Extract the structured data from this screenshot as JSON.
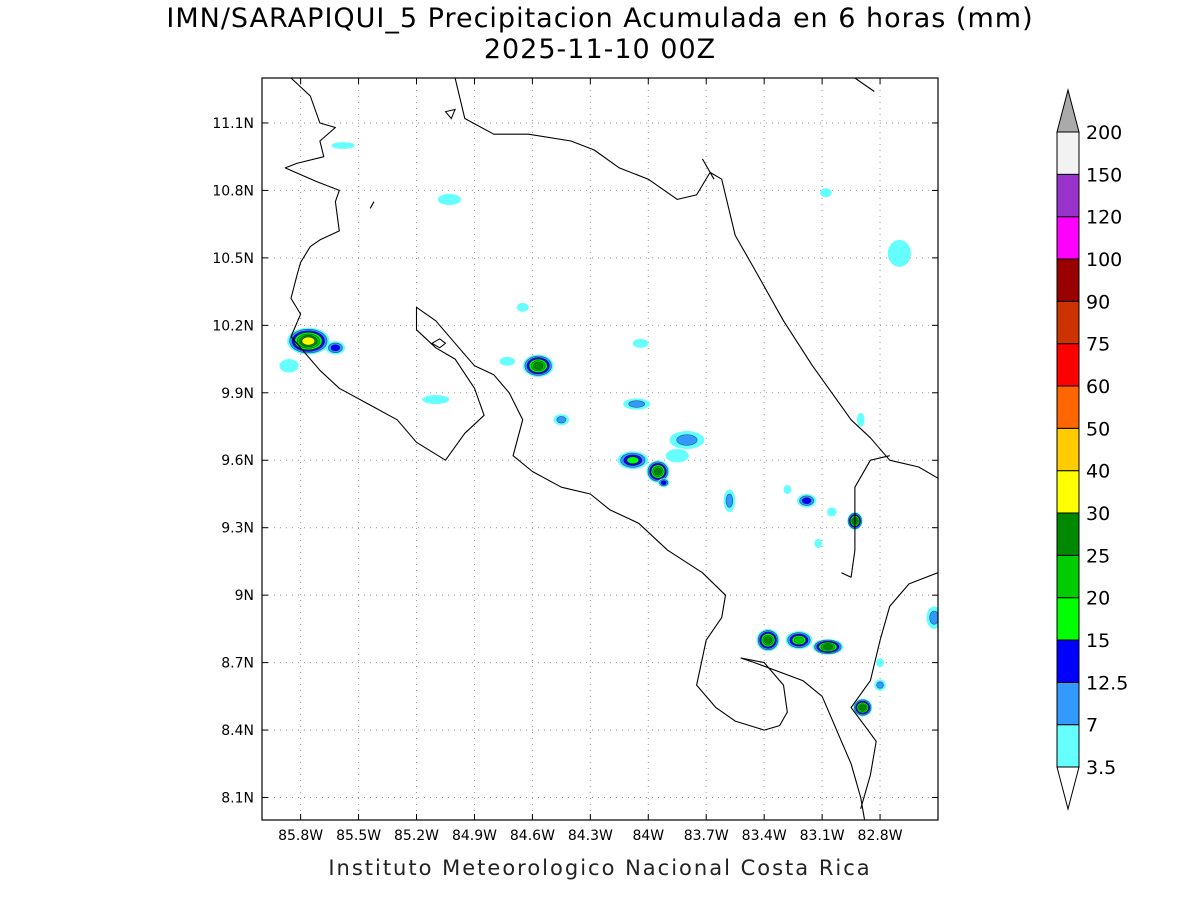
{
  "title": "IMN/SARAPIQUI_5 Precipitacion Acumulada en 6 horas (mm)",
  "subtitle": "2025-11-10 00Z",
  "footer": "Instituto Meteorologico Nacional Costa Rica",
  "map": {
    "lon_range": [
      -86.0,
      -82.5
    ],
    "lat_range": [
      8.0,
      11.3
    ],
    "x_ticks": [
      {
        "lon": -85.8,
        "label": "85.8W"
      },
      {
        "lon": -85.5,
        "label": "85.5W"
      },
      {
        "lon": -85.2,
        "label": "85.2W"
      },
      {
        "lon": -84.9,
        "label": "84.9W"
      },
      {
        "lon": -84.6,
        "label": "84.6W"
      },
      {
        "lon": -84.3,
        "label": "84.3W"
      },
      {
        "lon": -84.0,
        "label": "84W"
      },
      {
        "lon": -83.7,
        "label": "83.7W"
      },
      {
        "lon": -83.4,
        "label": "83.4W"
      },
      {
        "lon": -83.1,
        "label": "83.1W"
      },
      {
        "lon": -82.8,
        "label": "82.8W"
      }
    ],
    "y_ticks": [
      {
        "lat": 11.1,
        "label": "11.1N"
      },
      {
        "lat": 10.8,
        "label": "10.8N"
      },
      {
        "lat": 10.5,
        "label": "10.5N"
      },
      {
        "lat": 10.2,
        "label": "10.2N"
      },
      {
        "lat": 9.9,
        "label": "9.9N"
      },
      {
        "lat": 9.6,
        "label": "9.6N"
      },
      {
        "lat": 9.3,
        "label": "9.3N"
      },
      {
        "lat": 9.0,
        "label": "9N"
      },
      {
        "lat": 8.7,
        "label": "8.7N"
      },
      {
        "lat": 8.4,
        "label": "8.4N"
      },
      {
        "lat": 8.1,
        "label": "8.1N"
      }
    ],
    "grid": true,
    "coastline_color": "#000000",
    "coastlines": [
      [
        [
          -85.85,
          11.3
        ],
        [
          -85.75,
          11.22
        ],
        [
          -85.7,
          11.1
        ],
        [
          -85.62,
          11.08
        ],
        [
          -85.7,
          11.02
        ],
        [
          -85.68,
          10.95
        ],
        [
          -85.82,
          10.92
        ],
        [
          -85.88,
          10.9
        ],
        [
          -85.72,
          10.84
        ],
        [
          -85.6,
          10.8
        ],
        [
          -85.62,
          10.75
        ],
        [
          -85.6,
          10.62
        ],
        [
          -85.7,
          10.58
        ],
        [
          -85.75,
          10.55
        ],
        [
          -85.8,
          10.48
        ],
        [
          -85.82,
          10.42
        ],
        [
          -85.85,
          10.32
        ],
        [
          -85.8,
          10.25
        ],
        [
          -85.85,
          10.15
        ],
        [
          -85.7,
          10.0
        ],
        [
          -85.6,
          9.92
        ],
        [
          -85.45,
          9.85
        ],
        [
          -85.3,
          9.78
        ],
        [
          -85.2,
          9.68
        ],
        [
          -85.05,
          9.6
        ],
        [
          -84.95,
          9.72
        ],
        [
          -84.85,
          9.8
        ],
        [
          -84.9,
          9.92
        ],
        [
          -85.0,
          10.05
        ],
        [
          -85.1,
          10.1
        ],
        [
          -85.2,
          10.18
        ],
        [
          -85.2,
          10.28
        ],
        [
          -85.1,
          10.22
        ],
        [
          -85.0,
          10.12
        ],
        [
          -84.9,
          10.02
        ],
        [
          -84.8,
          9.98
        ],
        [
          -84.72,
          9.9
        ],
        [
          -84.65,
          9.78
        ],
        [
          -84.7,
          9.62
        ],
        [
          -84.6,
          9.55
        ],
        [
          -84.45,
          9.48
        ],
        [
          -84.3,
          9.45
        ],
        [
          -84.2,
          9.38
        ],
        [
          -84.05,
          9.32
        ],
        [
          -83.9,
          9.2
        ],
        [
          -83.72,
          9.1
        ],
        [
          -83.6,
          9.0
        ],
        [
          -83.62,
          8.9
        ],
        [
          -83.7,
          8.8
        ],
        [
          -83.72,
          8.72
        ],
        [
          -83.75,
          8.6
        ],
        [
          -83.65,
          8.5
        ],
        [
          -83.55,
          8.44
        ],
        [
          -83.4,
          8.4
        ],
        [
          -83.32,
          8.42
        ],
        [
          -83.28,
          8.48
        ],
        [
          -83.3,
          8.6
        ],
        [
          -83.4,
          8.7
        ],
        [
          -83.52,
          8.72
        ],
        [
          -83.45,
          8.7
        ],
        [
          -83.2,
          8.62
        ],
        [
          -83.1,
          8.55
        ],
        [
          -83.05,
          8.45
        ],
        [
          -83.0,
          8.35
        ],
        [
          -82.95,
          8.25
        ],
        [
          -82.9,
          8.1
        ],
        [
          -82.88,
          8.0
        ]
      ],
      [
        [
          -85.0,
          11.3
        ],
        [
          -84.95,
          11.12
        ],
        [
          -84.8,
          11.05
        ],
        [
          -84.62,
          11.05
        ],
        [
          -84.4,
          11.02
        ],
        [
          -84.28,
          10.98
        ],
        [
          -84.15,
          10.9
        ],
        [
          -84.0,
          10.85
        ],
        [
          -83.85,
          10.76
        ],
        [
          -83.75,
          10.78
        ],
        [
          -83.68,
          10.88
        ],
        [
          -83.62,
          10.85
        ],
        [
          -83.55,
          10.6
        ],
        [
          -83.45,
          10.45
        ],
        [
          -83.3,
          10.22
        ],
        [
          -83.15,
          10.02
        ],
        [
          -83.05,
          9.9
        ],
        [
          -82.95,
          9.78
        ],
        [
          -82.85,
          9.7
        ],
        [
          -82.75,
          9.6
        ],
        [
          -82.6,
          9.57
        ],
        [
          -82.5,
          9.52
        ]
      ],
      [
        [
          -82.93,
          11.3
        ],
        [
          -82.83,
          11.24
        ]
      ],
      [
        [
          -83.72,
          10.94
        ],
        [
          -83.66,
          10.85
        ]
      ],
      [
        [
          -82.9,
          8.05
        ],
        [
          -82.85,
          8.2
        ],
        [
          -82.82,
          8.35
        ],
        [
          -82.88,
          8.42
        ],
        [
          -82.95,
          8.5
        ],
        [
          -82.85,
          8.62
        ],
        [
          -82.8,
          8.8
        ],
        [
          -82.75,
          8.95
        ],
        [
          -82.65,
          9.05
        ],
        [
          -82.5,
          9.1
        ]
      ],
      [
        [
          -83.0,
          9.1
        ],
        [
          -82.95,
          9.08
        ],
        [
          -82.93,
          9.2
        ],
        [
          -82.93,
          9.32
        ],
        [
          -82.93,
          9.48
        ],
        [
          -82.85,
          9.6
        ],
        [
          -82.75,
          9.62
        ]
      ],
      [
        [
          -85.42,
          10.75
        ],
        [
          -85.44,
          10.72
        ]
      ]
    ],
    "lakes": [
      [
        [
          -85.05,
          11.15
        ],
        [
          -85.02,
          11.12
        ],
        [
          -85.0,
          11.16
        ],
        [
          -85.05,
          11.15
        ]
      ],
      [
        [
          -85.12,
          10.12
        ],
        [
          -85.08,
          10.1
        ],
        [
          -85.05,
          10.12
        ],
        [
          -85.08,
          10.14
        ],
        [
          -85.12,
          10.12
        ]
      ]
    ],
    "levels": [
      {
        "value": 3.5,
        "color": "#66ffff"
      },
      {
        "value": 7,
        "color": "#3399ff"
      },
      {
        "value": 12.5,
        "color": "#0000ff"
      },
      {
        "value": 15,
        "color": "#00ff00"
      },
      {
        "value": 20,
        "color": "#00cc00"
      },
      {
        "value": 25,
        "color": "#008800"
      },
      {
        "value": 30,
        "color": "#ffff00"
      },
      {
        "value": 40,
        "color": "#ffcc00"
      },
      {
        "value": 50,
        "color": "#ff6600"
      },
      {
        "value": 60,
        "color": "#ff0000"
      },
      {
        "value": 75,
        "color": "#cc3300"
      },
      {
        "value": 90,
        "color": "#990000"
      },
      {
        "value": 100,
        "color": "#ff00ff"
      },
      {
        "value": 120,
        "color": "#9933cc"
      },
      {
        "value": 150,
        "color": "#f2f2f2"
      },
      {
        "value": 200,
        "color": "#aaaaaa"
      }
    ],
    "precip_cells": [
      {
        "lon": -85.76,
        "lat": 10.13,
        "mm": 32,
        "rx": 0.11,
        "ry": 0.06
      },
      {
        "lon": -85.62,
        "lat": 10.1,
        "mm": 13,
        "rx": 0.05,
        "ry": 0.03
      },
      {
        "lon": -85.86,
        "lat": 10.02,
        "mm": 4,
        "rx": 0.05,
        "ry": 0.03
      },
      {
        "lon": -84.57,
        "lat": 10.02,
        "mm": 27,
        "rx": 0.08,
        "ry": 0.05
      },
      {
        "lon": -84.08,
        "lat": 9.6,
        "mm": 17,
        "rx": 0.08,
        "ry": 0.04
      },
      {
        "lon": -83.95,
        "lat": 9.55,
        "mm": 26,
        "rx": 0.06,
        "ry": 0.05
      },
      {
        "lon": -83.92,
        "lat": 9.5,
        "mm": 13,
        "rx": 0.03,
        "ry": 0.02
      },
      {
        "lon": -83.8,
        "lat": 9.69,
        "mm": 7.5,
        "rx": 0.09,
        "ry": 0.04
      },
      {
        "lon": -83.85,
        "lat": 9.62,
        "mm": 4,
        "rx": 0.06,
        "ry": 0.03
      },
      {
        "lon": -84.06,
        "lat": 9.85,
        "mm": 8,
        "rx": 0.07,
        "ry": 0.025
      },
      {
        "lon": -84.04,
        "lat": 10.12,
        "mm": 4,
        "rx": 0.04,
        "ry": 0.02
      },
      {
        "lon": -84.45,
        "lat": 9.78,
        "mm": 8,
        "rx": 0.04,
        "ry": 0.025
      },
      {
        "lon": -85.1,
        "lat": 9.87,
        "mm": 4,
        "rx": 0.07,
        "ry": 0.02
      },
      {
        "lon": -84.73,
        "lat": 10.04,
        "mm": 4,
        "rx": 0.04,
        "ry": 0.02
      },
      {
        "lon": -84.65,
        "lat": 10.28,
        "mm": 4,
        "rx": 0.03,
        "ry": 0.02
      },
      {
        "lon": -85.03,
        "lat": 10.76,
        "mm": 4,
        "rx": 0.06,
        "ry": 0.025
      },
      {
        "lon": -85.58,
        "lat": 11.0,
        "mm": 4,
        "rx": 0.06,
        "ry": 0.015
      },
      {
        "lon": -83.58,
        "lat": 9.42,
        "mm": 8,
        "rx": 0.03,
        "ry": 0.05
      },
      {
        "lon": -83.18,
        "lat": 9.42,
        "mm": 13,
        "rx": 0.05,
        "ry": 0.03
      },
      {
        "lon": -83.05,
        "lat": 9.37,
        "mm": 4,
        "rx": 0.025,
        "ry": 0.02
      },
      {
        "lon": -82.93,
        "lat": 9.33,
        "mm": 26,
        "rx": 0.04,
        "ry": 0.04
      },
      {
        "lon": -83.38,
        "lat": 8.8,
        "mm": 27,
        "rx": 0.06,
        "ry": 0.05
      },
      {
        "lon": -83.22,
        "lat": 8.8,
        "mm": 22,
        "rx": 0.07,
        "ry": 0.04
      },
      {
        "lon": -83.07,
        "lat": 8.77,
        "mm": 26,
        "rx": 0.08,
        "ry": 0.035
      },
      {
        "lon": -82.89,
        "lat": 8.5,
        "mm": 27,
        "rx": 0.05,
        "ry": 0.04
      },
      {
        "lon": -82.8,
        "lat": 8.6,
        "mm": 8,
        "rx": 0.03,
        "ry": 0.025
      },
      {
        "lon": -82.7,
        "lat": 10.52,
        "mm": 4,
        "rx": 0.06,
        "ry": 0.06
      },
      {
        "lon": -82.52,
        "lat": 8.9,
        "mm": 8,
        "rx": 0.04,
        "ry": 0.05
      },
      {
        "lon": -82.9,
        "lat": 9.78,
        "mm": 4,
        "rx": 0.02,
        "ry": 0.03
      },
      {
        "lon": -83.08,
        "lat": 10.79,
        "mm": 4,
        "rx": 0.03,
        "ry": 0.02
      },
      {
        "lon": -82.8,
        "lat": 8.7,
        "mm": 4,
        "rx": 0.02,
        "ry": 0.02
      },
      {
        "lon": -83.12,
        "lat": 9.23,
        "mm": 4,
        "rx": 0.02,
        "ry": 0.02
      },
      {
        "lon": -83.28,
        "lat": 9.47,
        "mm": 4,
        "rx": 0.02,
        "ry": 0.02
      }
    ]
  },
  "colorbar": {
    "labels": [
      "3.5",
      "7",
      "12.5",
      "15",
      "20",
      "25",
      "30",
      "40",
      "50",
      "60",
      "75",
      "90",
      "100",
      "120",
      "150",
      "200"
    ],
    "top_arrow_color": "#aaaaaa",
    "bottom_arrow_color": "#ffffff"
  }
}
